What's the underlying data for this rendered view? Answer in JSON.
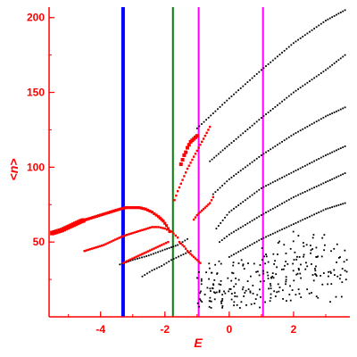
{
  "chart_data": {
    "type": "scatter",
    "xlabel": "E",
    "ylabel": "<n>",
    "xlim": [
      -5.6,
      3.75
    ],
    "ylim": [
      0,
      207
    ],
    "x_ticks": [
      {
        "value": -4,
        "label": "-4"
      },
      {
        "value": -2,
        "label": "-2"
      },
      {
        "value": 0,
        "label": "0"
      },
      {
        "value": 2,
        "label": "2"
      }
    ],
    "y_ticks": [
      {
        "value": 50,
        "label": "50"
      },
      {
        "value": 100,
        "label": "100"
      },
      {
        "value": 150,
        "label": "150"
      },
      {
        "value": 200,
        "label": "200"
      }
    ],
    "vertical_lines": [
      {
        "x": -3.3,
        "color": "#0000ff",
        "width": "thick"
      },
      {
        "x": -1.75,
        "color": "#008000",
        "width": "thin"
      },
      {
        "x": -0.95,
        "color": "#ff00ff",
        "width": "thin"
      },
      {
        "x": 1.05,
        "color": "#ff00ff",
        "width": "thin"
      }
    ],
    "colors": {
      "axis": "#ff0000",
      "black_points": "#000000",
      "red_points": "#ff0000"
    },
    "red_series": [
      {
        "x": [
          -5.5,
          -5.2,
          -4.9,
          -4.6,
          -4.3,
          -4.0,
          -3.7,
          -3.4,
          -3.2,
          -3.0,
          -2.8,
          -2.6,
          -2.4,
          -2.2,
          -2.05,
          -1.95,
          -1.85
        ],
        "y": [
          56,
          58,
          61,
          64,
          66,
          68,
          70,
          72,
          73,
          73,
          73,
          72,
          70,
          67,
          64,
          61,
          57
        ]
      },
      {
        "x": [
          -4.5,
          -4.2,
          -3.9,
          -3.6,
          -3.3,
          -3.0,
          -2.7,
          -2.4,
          -2.2,
          -2.0,
          -1.8,
          -1.6
        ],
        "y": [
          44,
          46,
          48,
          51,
          54,
          56,
          58,
          60,
          60,
          59,
          57,
          53
        ]
      },
      {
        "x": [
          -3.3,
          -3.0,
          -2.7,
          -2.4,
          -2.1,
          -1.9
        ],
        "y": [
          36,
          39,
          42,
          45,
          48,
          50
        ]
      },
      {
        "x": [
          -1.5,
          -1.45,
          -1.4,
          -1.35,
          -1.3,
          -1.25,
          -1.2,
          -1.15,
          -1.1,
          -1.05,
          -1.0
        ],
        "y": [
          102,
          105,
          108,
          110,
          113,
          115,
          117,
          118,
          119,
          120,
          121
        ]
      },
      {
        "x": [
          -1.7,
          -1.6,
          -1.5,
          -1.4,
          -1.3,
          -1.2,
          -1.1,
          -1.0,
          -0.9,
          -0.8,
          -0.7,
          -0.6
        ],
        "y": [
          78,
          84,
          89,
          94,
          99,
          103,
          107,
          111,
          115,
          119,
          123,
          127
        ]
      },
      {
        "x": [
          -1.1,
          -1.0,
          -0.9,
          -0.8,
          -0.7,
          -0.6,
          -0.5
        ],
        "y": [
          65,
          68,
          70,
          72,
          74,
          76,
          80
        ]
      },
      {
        "x": [
          -1.55,
          -1.4,
          -1.3,
          -1.2,
          -1.1,
          -1.0,
          -0.9
        ],
        "y": [
          50,
          47,
          44,
          42,
          40,
          38,
          36
        ]
      }
    ],
    "black_series": [
      {
        "x": [
          -1.0,
          0.0,
          1.0,
          2.0,
          3.0,
          3.6
        ],
        "y": [
          126,
          146,
          165,
          183,
          198,
          205
        ]
      },
      {
        "x": [
          -0.6,
          0.0,
          1.0,
          2.0,
          3.0,
          3.6
        ],
        "y": [
          104,
          115,
          133,
          150,
          165,
          175
        ]
      },
      {
        "x": [
          -0.5,
          0.0,
          1.0,
          2.0,
          3.0,
          3.6
        ],
        "y": [
          82,
          92,
          108,
          122,
          134,
          140
        ]
      },
      {
        "x": [
          -0.4,
          0.0,
          1.0,
          2.0,
          3.0,
          3.6
        ],
        "y": [
          59,
          70,
          86,
          97,
          108,
          114
        ]
      },
      {
        "x": [
          -0.3,
          0.0,
          1.0,
          2.0,
          3.0,
          3.6
        ],
        "y": [
          50,
          55,
          68,
          80,
          90,
          96
        ]
      },
      {
        "x": [
          0.0,
          1.0,
          2.0,
          3.0,
          3.6
        ],
        "y": [
          40,
          52,
          62,
          72,
          76
        ]
      },
      {
        "x": [
          -3.4,
          -3.0,
          -2.5,
          -2.0,
          -1.6,
          -1.3
        ],
        "y": [
          35,
          38,
          41,
          45,
          48,
          52
        ]
      },
      {
        "x": [
          -2.7,
          -2.4,
          -2.1,
          -1.8,
          -1.5,
          -1.2
        ],
        "y": [
          27,
          31,
          34,
          38,
          41,
          44
        ]
      }
    ]
  }
}
